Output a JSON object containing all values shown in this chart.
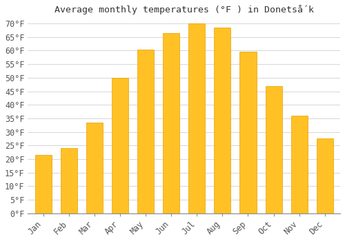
{
  "title": "Average monthly temperatures (°F ) in Donetsǻk",
  "months": [
    "Jan",
    "Feb",
    "Mar",
    "Apr",
    "May",
    "Jun",
    "Jul",
    "Aug",
    "Sep",
    "Oct",
    "Nov",
    "Dec"
  ],
  "values": [
    21.5,
    24.0,
    33.5,
    50.0,
    60.5,
    66.5,
    70.0,
    68.5,
    59.5,
    47.0,
    36.0,
    27.5
  ],
  "bar_color": "#FFC125",
  "bar_edge_color": "#E8A000",
  "background_color": "#FFFFFF",
  "grid_color": "#D0D0D0",
  "ytick_labels": [
    "0°F",
    "5°F",
    "10°F",
    "15°F",
    "20°F",
    "25°F",
    "30°F",
    "35°F",
    "40°F",
    "45°F",
    "50°F",
    "55°F",
    "60°F",
    "65°F",
    "70°F"
  ],
  "ytick_values": [
    0,
    5,
    10,
    15,
    20,
    25,
    30,
    35,
    40,
    45,
    50,
    55,
    60,
    65,
    70
  ],
  "ylim": [
    0,
    72
  ],
  "title_fontsize": 9.5,
  "tick_fontsize": 8.5,
  "bar_width": 0.65
}
